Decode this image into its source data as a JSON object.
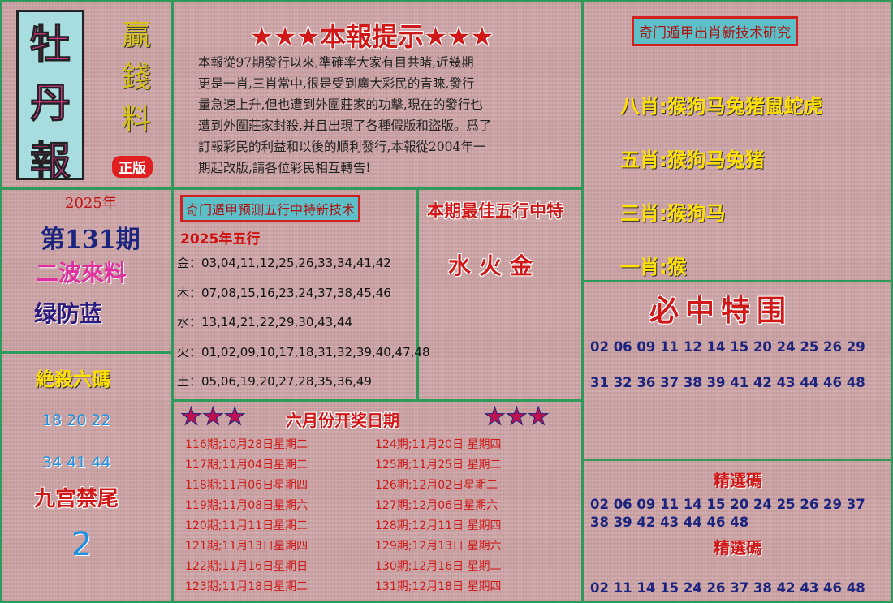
{
  "logo": {
    "title": [
      "牡",
      "丹",
      "報"
    ],
    "slogan": [
      "贏",
      "錢",
      "料"
    ],
    "badge": "正版"
  },
  "notice": {
    "title": "★★★本報提示★★★",
    "lines": [
      "本報從97期發行以來,準確率大家有目共睹,近幾期",
      "更是一肖,三肖常中,很是受到廣大彩民的青睞,發行",
      "量急速上升,但也遭到外圍莊家的功擊,現在的發行也",
      "遭到外圍莊家封殺,并且出現了各種假版和盜版。爲了",
      "訂報彩民的利益和以後的順利發行,本報從2004年一",
      "期起改版,請各位彩民相互轉告!"
    ]
  },
  "zodiac": {
    "title": "奇门遁甲出肖新技术研究",
    "items": [
      "八肖:猴狗马兔猪鼠蛇虎",
      "五肖:猴狗马兔猪",
      "三肖:猴狗马",
      "一肖:猴"
    ]
  },
  "issue": {
    "year": "2025年",
    "number": "第131期",
    "wave": "二波來料",
    "color": "绿防蓝"
  },
  "wuxing": {
    "title": "奇门遁甲预测五行中特新技术",
    "subtitle": "2025年五行",
    "rows": [
      "金：03,04,11,12,25,26,33,34,41,42",
      "木：07,08,15,16,23,24,37,38,45,46",
      "水：13,14,21,22,29,30,43,44",
      "火：01,02,09,10,17,18,31,32,39,40,47,48",
      "土：05,06,19,20,27,28,35,36,49"
    ]
  },
  "best": {
    "title": "本期最佳五行中特",
    "value": "水火金"
  },
  "special": {
    "title": "必中特围",
    "lines": [
      "02 06 09 11 12 14 15 20 24 25 26 29",
      "31 32 36 37 38 39 41 42 43 44 46 48"
    ]
  },
  "kill": {
    "title": "絶殺六碼",
    "lines": [
      "18 20 22",
      "34 41 44"
    ],
    "tail_title": "九宫禁尾",
    "tail": "2"
  },
  "schedule": {
    "stars": "★★★",
    "title": "六月份开奖日期",
    "left": [
      "116期;10月28日星期二",
      "117期;11月04日星期二",
      "118期;11月06日星期四",
      "119期;11月08日星期六",
      "120期;11月11日星期二",
      "121期;11月13日星期四",
      "122期;11月16日星期日",
      "123期;11月18日星期二"
    ],
    "right": [
      "124期;11月20日 星期四",
      "125期;11月25日 星期二",
      "126期;12月02日星期二",
      "127期;12月06日星期六",
      "128期;12月11日 星期四",
      "129期;12月13日 星期六",
      "130期;12月16日 星期二",
      "131期;12月18日 星期四"
    ]
  },
  "selected": [
    {
      "title": "精選碼",
      "lines": [
        "02 06 09 11 14 15 20 24 25 26 29 37",
        "38 39 42 43 44 46 48"
      ]
    },
    {
      "title": "精選碼",
      "lines": [
        "02 11 14 15 24 26 37 38 42 43 46 48"
      ]
    }
  ]
}
